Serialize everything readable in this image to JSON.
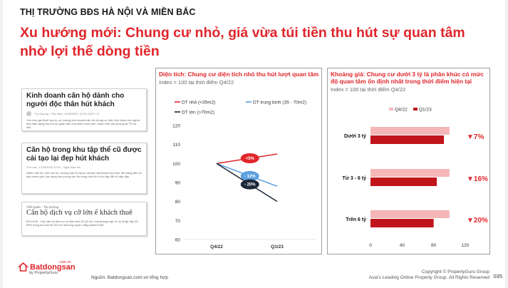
{
  "header": {
    "kicker": "THỊ TRƯỜNG BĐS HÀ NỘI VÀ MIỀN BẮC",
    "title": "Xu hướng mới: Chung cư nhỏ, giá vừa túi tiền thu hút sự quan tâm nhờ lợi thế dòng tiền"
  },
  "articles": [
    {
      "headline": "Kinh doanh căn hộ dành cho người độc thân hút khách",
      "meta": "Thu Quang · Thứ năm, 11/08/2022, 11:54 (GMT+7)",
      "excerpt": "Với mức giá thuê hợp lý, xu hướng kinh doanh căn hộ chung cư diện tích dành cho người độc thân đang thu hút sự quan tâm của nhiều sinh viên, nhân viên văn phòng tại TP.Hà Nội."
    },
    {
      "headline": "Căn hộ trong khu tập thể cũ được cải tạo lại đẹp hút khách",
      "meta": "Thứ sáu, 17/03/2023 22:41 · Ngọc Bảo Hà",
      "excerpt": "Nhiều căn hộ, chủ căn hộ, hướng căn hộ được cải tạo mới khách như tân, để mang đến vẻ đẹp chính yên, tác dụng cho lương căn hộ trong căn hộ ở khu tập thể cũ hậu dậy."
    },
    {
      "source": "Thế Quân · Thị trường",
      "headline": "Căn hộ dịch vụ cỡ lớn ế khách thuê",
      "excerpt": "ĐH HCM - Các căn hộ dịch vụ có diện tích 20-45 m2, một phòng ngủ, có tỷ lệ lấp đầy 90-95% trong khi loại 90-110 m2 thường xuyên vắng khách thuê."
    }
  ],
  "left_panel": {
    "title": "Diện tích: Chung cư diện tích nhỏ thu hút lượt quan tâm",
    "subtitle": "Index = 100 tại thời điểm Q4/22"
  },
  "right_panel": {
    "title": "Khoảng giá: Chung cư dưới 3 tỷ là phân khúc có mức độ quan tâm ổn định nhất trong thời điểm hiện tại",
    "subtitle": "Index = 100 tại thời điểm Q4/22"
  },
  "chart_data": [
    {
      "type": "line",
      "x": [
        "Q4/22",
        "Q1/23"
      ],
      "ylim": [
        60,
        120
      ],
      "yticks": [
        60,
        70,
        80,
        90,
        100,
        110,
        120
      ],
      "series": [
        {
          "name": "DT nhỏ (<35m2)",
          "values": [
            100,
            105
          ],
          "color": "#e0262b",
          "change_label": "+5%"
        },
        {
          "name": "DT trung bình (35 - 70m2)",
          "values": [
            100,
            88
          ],
          "color": "#5aa0e0",
          "change_label": "- 12%"
        },
        {
          "name": "DT lớn (>70m2)",
          "values": [
            100,
            80
          ],
          "color": "#1b2838",
          "change_label": "- 20%"
        }
      ]
    },
    {
      "type": "bar",
      "orientation": "horizontal",
      "categories": [
        "Dưới 3 tỷ",
        "Từ 3 - 6 tỷ",
        "Trên 6 tỷ"
      ],
      "series": [
        {
          "name": "Q4/22",
          "values": [
            100,
            100,
            100
          ],
          "color": "#f4b6b6"
        },
        {
          "name": "Q1/23",
          "values": [
            93,
            84,
            80
          ],
          "color": "#c0151b"
        }
      ],
      "change_labels": [
        "▼7%",
        "▼16%",
        "▼20%"
      ],
      "xlim": [
        0,
        120
      ],
      "xticks": [
        0,
        40,
        80,
        120
      ]
    }
  ],
  "footer": {
    "logo_word": "Batdongsan",
    "logo_dotcom": ".com.vn",
    "logo_by": "by PropertyGuru",
    "source": "Nguồn: Batdongsan.com.vn tổng hợp",
    "copyright": "Copyright © PropertyGuru Group",
    "copyright2": "Asia's Leading Online Property Group. All Rights Reserved",
    "page": "035"
  }
}
